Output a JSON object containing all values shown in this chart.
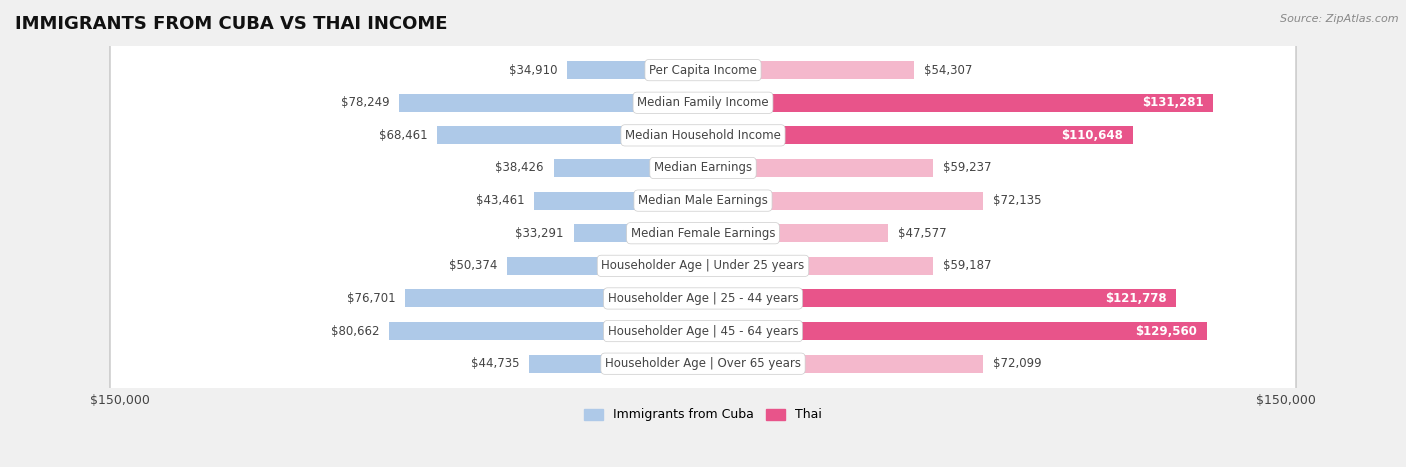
{
  "title": "IMMIGRANTS FROM CUBA VS THAI INCOME",
  "source": "Source: ZipAtlas.com",
  "categories": [
    "Per Capita Income",
    "Median Family Income",
    "Median Household Income",
    "Median Earnings",
    "Median Male Earnings",
    "Median Female Earnings",
    "Householder Age | Under 25 years",
    "Householder Age | 25 - 44 years",
    "Householder Age | 45 - 64 years",
    "Householder Age | Over 65 years"
  ],
  "cuba_values": [
    34910,
    78249,
    68461,
    38426,
    43461,
    33291,
    50374,
    76701,
    80662,
    44735
  ],
  "thai_values": [
    54307,
    131281,
    110648,
    59237,
    72135,
    47577,
    59187,
    121778,
    129560,
    72099
  ],
  "cuba_color_light": "#aec9e8",
  "cuba_color_dark": "#6a9fd4",
  "thai_color_light": "#f4b8cc",
  "thai_color_dark": "#e8548a",
  "max_val": 150000,
  "background_color": "#f0f0f0",
  "row_bg_color": "#ffffff",
  "label_color_dark": "#444444",
  "label_color_light": "#ffffff",
  "title_fontsize": 13,
  "label_fontsize": 8.5,
  "tick_fontsize": 9,
  "high_value_threshold": 95000
}
